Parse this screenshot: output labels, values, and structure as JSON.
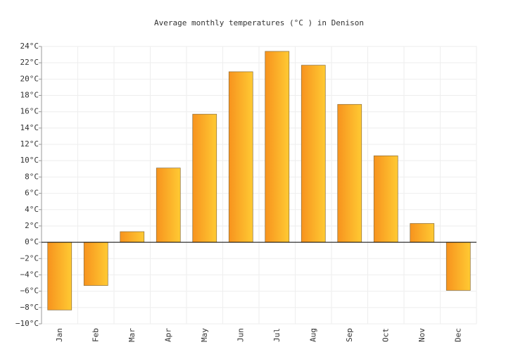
{
  "chart_data": {
    "type": "bar",
    "title": "Average monthly temperatures (°C ) in Denison",
    "categories": [
      "Jan",
      "Feb",
      "Mar",
      "Apr",
      "May",
      "Jun",
      "Jul",
      "Aug",
      "Sep",
      "Oct",
      "Nov",
      "Dec"
    ],
    "values": [
      -8.3,
      -5.3,
      1.3,
      9.1,
      15.7,
      20.9,
      23.4,
      21.7,
      16.9,
      10.6,
      2.3,
      -5.9
    ],
    "gradient": [
      "#f7931e",
      "#ffca33"
    ],
    "border": "#8a6d3b",
    "ylim": [
      -10,
      24
    ],
    "yticks": [
      {
        "value": -10,
        "label": "−10°C"
      },
      {
        "value": -8,
        "label": "−8°C"
      },
      {
        "value": -6,
        "label": "−6°C"
      },
      {
        "value": -4,
        "label": "−4°C"
      },
      {
        "value": -2,
        "label": "−2°C"
      },
      {
        "value": 0,
        "label": "0°C"
      },
      {
        "value": 2,
        "label": "2°C"
      },
      {
        "value": 4,
        "label": "4°C"
      },
      {
        "value": 6,
        "label": "6°C"
      },
      {
        "value": 8,
        "label": "8°C"
      },
      {
        "value": 10,
        "label": "10°C"
      },
      {
        "value": 12,
        "label": "12°C"
      },
      {
        "value": 14,
        "label": "14°C"
      },
      {
        "value": 16,
        "label": "16°C"
      },
      {
        "value": 18,
        "label": "18°C"
      },
      {
        "value": 20,
        "label": "20°C"
      },
      {
        "value": 22,
        "label": "22°C"
      },
      {
        "value": 24,
        "label": "24°C"
      }
    ],
    "grid": true
  }
}
